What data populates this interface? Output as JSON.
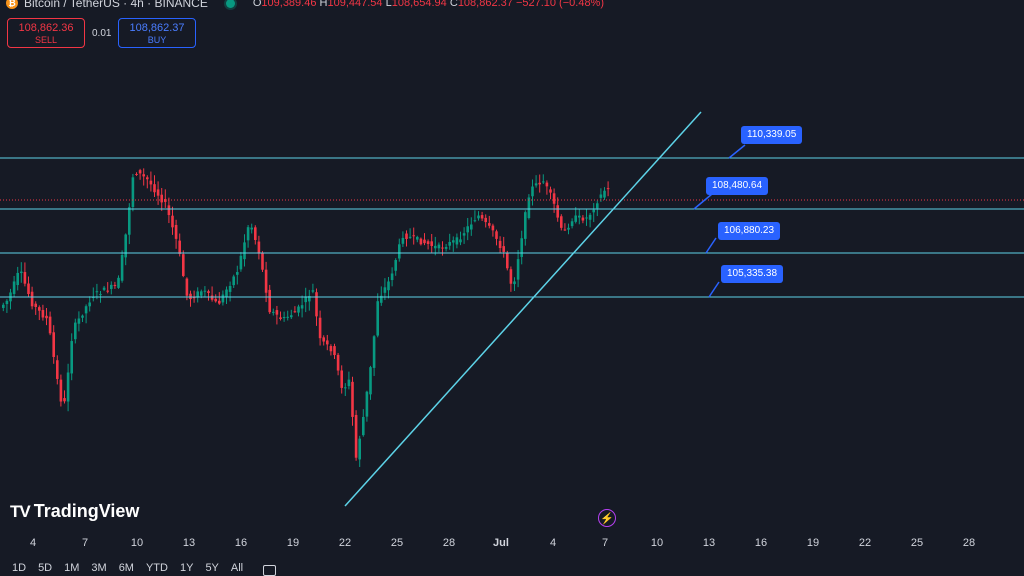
{
  "header": {
    "symbol_icon": "bitcoin-icon",
    "title": "Bitcoin / TetherUS · 4h · BINANCE",
    "ohlc": {
      "o_label": "O",
      "o": "109,389.46",
      "h_label": "H",
      "h": "109,447.54",
      "l_label": "L",
      "l": "108,654.94",
      "c_label": "C",
      "c": "108,862.37",
      "change": "−527.10 (−0.48%)"
    }
  },
  "trade": {
    "sell_price": "108,862.36",
    "sell_label": "SELL",
    "spread": "0.01",
    "buy_price": "108,862.37",
    "buy_label": "BUY"
  },
  "levels": {
    "l1": "110,339.05",
    "l2": "108,480.64",
    "l3": "106,880.23",
    "l4": "105,335.38"
  },
  "logo": {
    "text": "TradingView"
  },
  "x_axis": [
    "4",
    "7",
    "10",
    "13",
    "16",
    "19",
    "22",
    "25",
    "28",
    "Jul",
    "4",
    "7",
    "10",
    "13",
    "16",
    "19",
    "22",
    "25",
    "28"
  ],
  "ranges": [
    "1D",
    "5D",
    "1M",
    "3M",
    "6M",
    "YTD",
    "1Y",
    "5Y",
    "All"
  ],
  "colors": {
    "up": "#089981",
    "down": "#f23645",
    "line": "#5dd3e8",
    "label": "#2962ff",
    "bg": "#161a25"
  }
}
